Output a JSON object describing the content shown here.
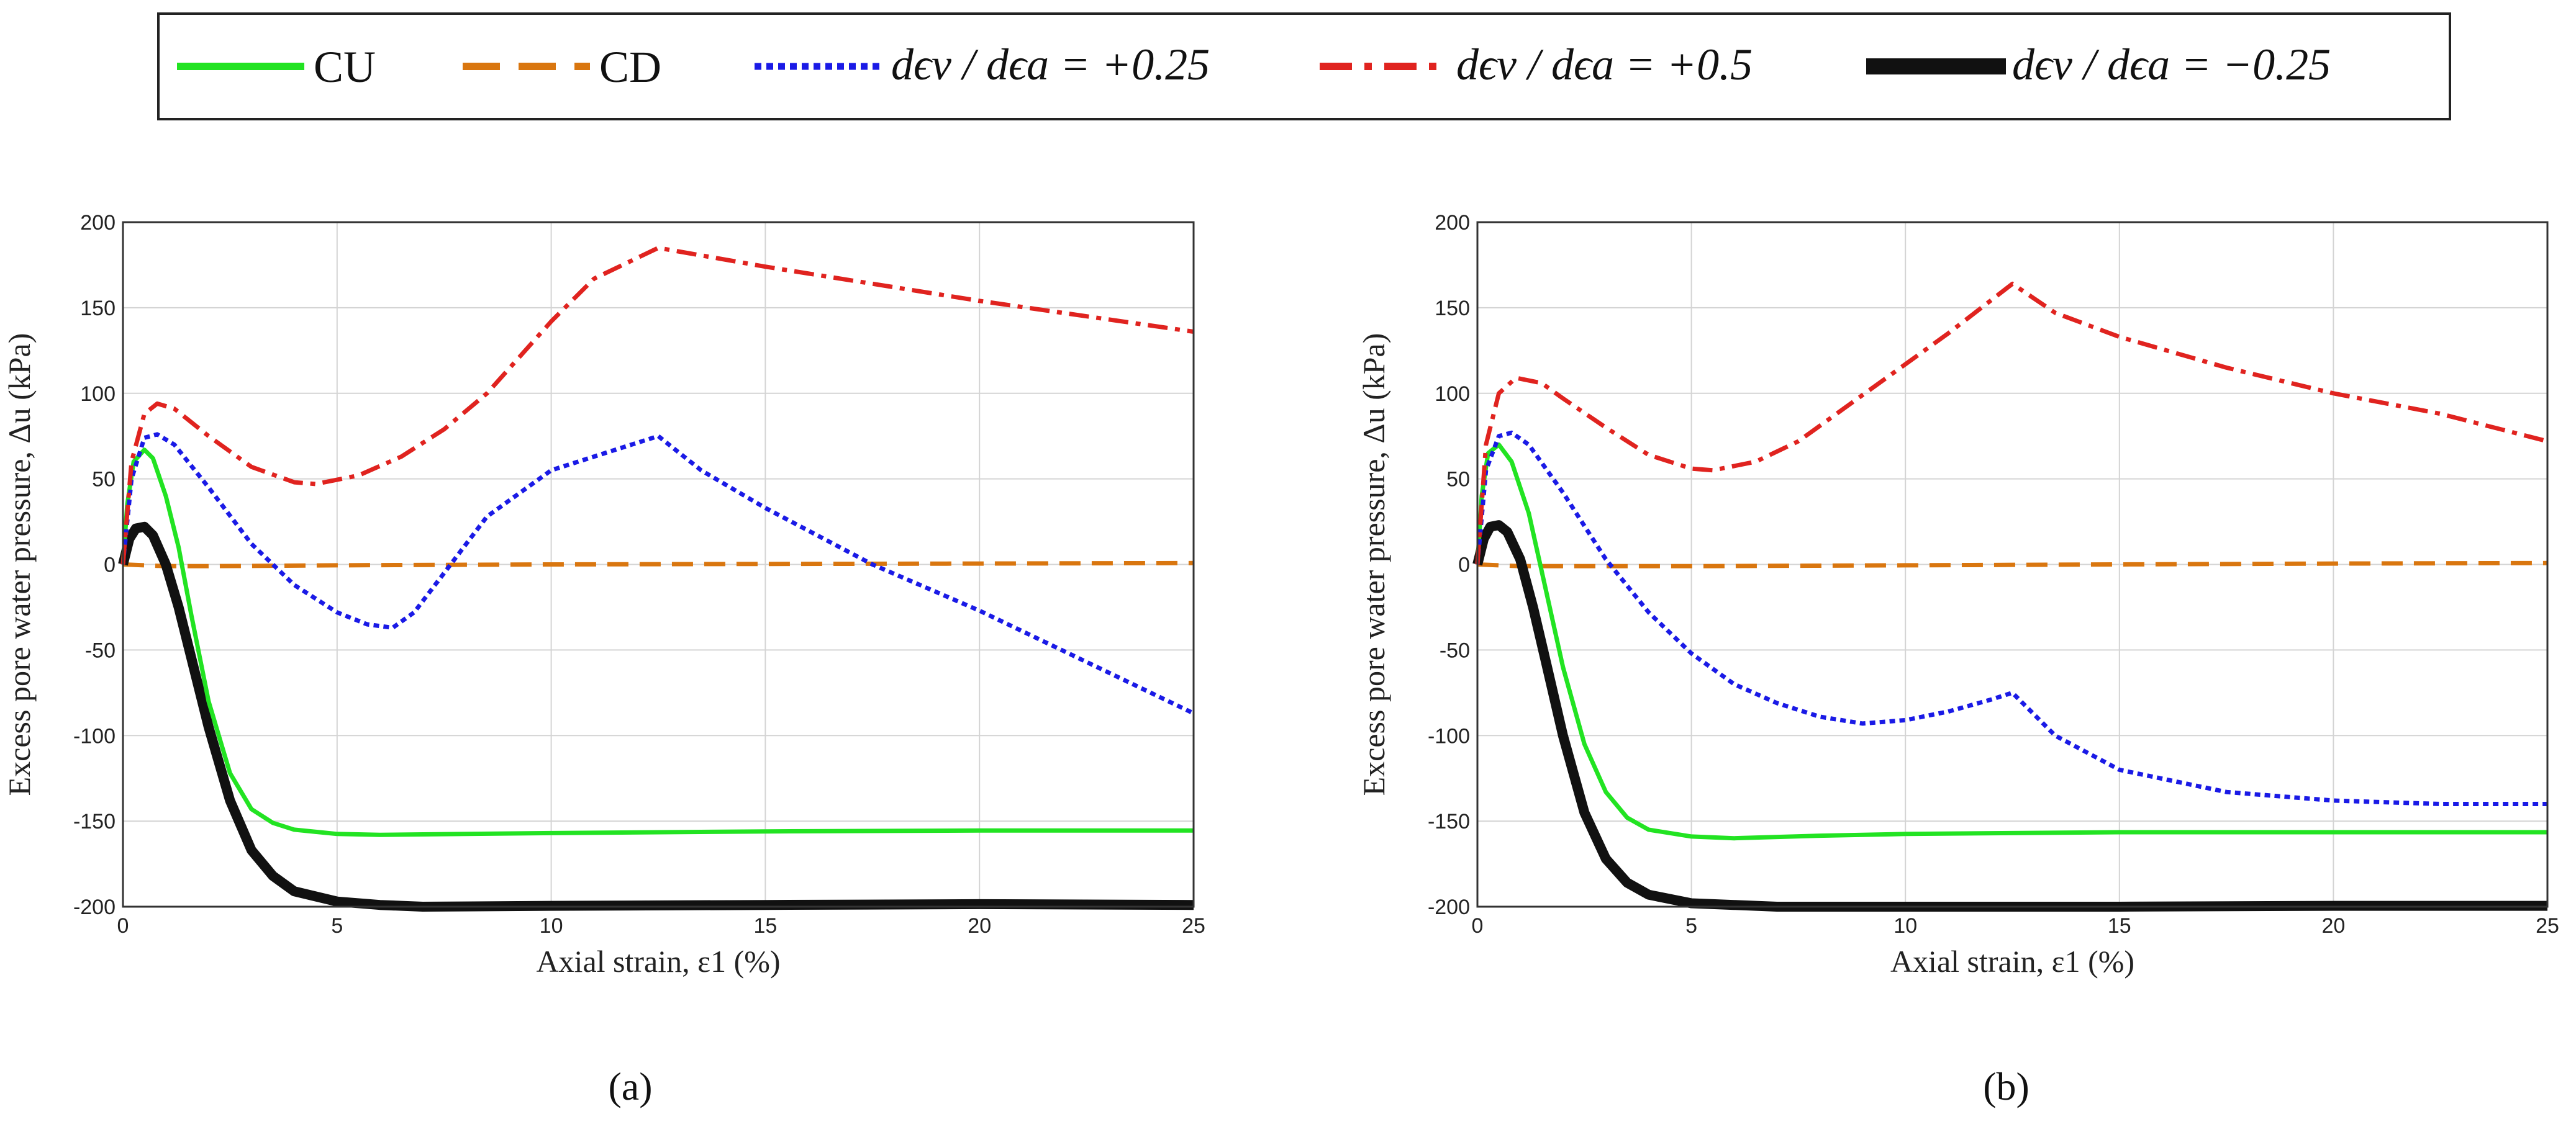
{
  "colors": {
    "CU": "#22e322",
    "CD": "#d9760f",
    "plus025": "#1a1ae6",
    "plus05": "#e0231f",
    "minus025": "#111111",
    "grid": "#d4d4d4",
    "axis": "#333333"
  },
  "legend": {
    "items": [
      {
        "key": "CU",
        "label": "CU"
      },
      {
        "key": "CD",
        "label": "CD"
      },
      {
        "key": "plus025",
        "label": "dϵv / dϵa = +0.25"
      },
      {
        "key": "plus05",
        "label": "dϵv / dϵa = +0.5"
      },
      {
        "key": "minus025",
        "label": "dϵv / dϵa = −0.25"
      }
    ]
  },
  "chart_data": [
    {
      "type": "line",
      "panel": "(a)",
      "xlabel": "Axial strain, ε1 (%)",
      "ylabel": "Excess pore water pressure, Δu (kPa)",
      "xlim": [
        0,
        25
      ],
      "ylim": [
        -200,
        200
      ],
      "xticks": [
        "0",
        "5",
        "10",
        "15",
        "20",
        "25"
      ],
      "yticks": [
        "200",
        "150",
        "100",
        "50",
        "0",
        "-50",
        "-100",
        "-150",
        "-200"
      ],
      "grid": true,
      "series": [
        {
          "name": "CU",
          "x": [
            0,
            0.1,
            0.25,
            0.5,
            0.7,
            1.0,
            1.3,
            1.6,
            2.0,
            2.5,
            3.0,
            3.5,
            4.0,
            5.0,
            6.0,
            8.0,
            10.0,
            15.0,
            20.0,
            25.0
          ],
          "y": [
            0,
            35,
            60,
            67,
            62,
            40,
            10,
            -30,
            -80,
            -122,
            -143,
            -151,
            -155,
            -157.5,
            -158,
            -157.5,
            -157,
            -156,
            -155.5,
            -155.5
          ]
        },
        {
          "name": "CD",
          "x": [
            0,
            0.5,
            1,
            2,
            5,
            10,
            15,
            20,
            25
          ],
          "y": [
            0,
            -0.5,
            -1,
            -1,
            -0.5,
            0,
            0.3,
            0.5,
            0.8
          ]
        },
        {
          "name": "dϵv / dϵa = +0.25",
          "x": [
            0,
            0.2,
            0.5,
            0.8,
            1.2,
            2.0,
            3.0,
            4.0,
            5.0,
            5.7,
            6.3,
            6.8,
            7.5,
            8.5,
            10.0,
            11.5,
            12.5,
            13.5,
            15.0,
            17.5,
            20.0,
            22.5,
            25.0
          ],
          "y": [
            0,
            50,
            74,
            76,
            70,
            45,
            12,
            -12,
            -28,
            -35,
            -37,
            -28,
            -5,
            28,
            55,
            67,
            75,
            55,
            33,
            0,
            -27,
            -57,
            -87
          ]
        },
        {
          "name": "dϵv / dϵa = +0.5",
          "x": [
            0,
            0.2,
            0.5,
            0.8,
            1.2,
            2.0,
            3.0,
            4.0,
            4.5,
            5.5,
            6.5,
            7.5,
            8.5,
            10.0,
            11.0,
            12.5,
            15.0,
            20.0,
            25.0
          ],
          "y": [
            0,
            60,
            88,
            94,
            91,
            75,
            57,
            48,
            47,
            52,
            63,
            79,
            100,
            142,
            167,
            185,
            174,
            154,
            136
          ]
        },
        {
          "name": "dϵv / dϵa = −0.25",
          "x": [
            0,
            0.15,
            0.3,
            0.5,
            0.7,
            1.0,
            1.3,
            1.6,
            2.0,
            2.5,
            3.0,
            3.5,
            4.0,
            5.0,
            6.0,
            7.0,
            10.0,
            15.0,
            20.0,
            25.0
          ],
          "y": [
            0,
            15,
            21,
            22,
            17,
            0,
            -25,
            -55,
            -95,
            -138,
            -167,
            -182,
            -191,
            -197,
            -199,
            -200,
            -199.5,
            -199,
            -198.5,
            -199
          ]
        }
      ]
    },
    {
      "type": "line",
      "panel": "(b)",
      "xlabel": "Axial strain, ε1 (%)",
      "ylabel": "Excess pore water pressure, Δu (kPa)",
      "xlim": [
        0,
        25
      ],
      "ylim": [
        -200,
        200
      ],
      "xticks": [
        "0",
        "5",
        "10",
        "15",
        "20",
        "25"
      ],
      "yticks": [
        "200",
        "150",
        "100",
        "50",
        "0",
        "-50",
        "-100",
        "-150",
        "-200"
      ],
      "grid": true,
      "series": [
        {
          "name": "CU",
          "x": [
            0,
            0.1,
            0.25,
            0.5,
            0.8,
            1.2,
            1.6,
            2.0,
            2.5,
            3.0,
            3.5,
            4.0,
            5.0,
            6.0,
            8.0,
            10.0,
            15.0,
            20.0,
            25.0
          ],
          "y": [
            0,
            40,
            65,
            70,
            60,
            30,
            -15,
            -60,
            -105,
            -133,
            -148,
            -155,
            -159,
            -160,
            -158.5,
            -157.5,
            -156.5,
            -156.5,
            -156.5
          ]
        },
        {
          "name": "CD",
          "x": [
            0,
            0.5,
            1,
            2,
            5,
            10,
            15,
            20,
            25
          ],
          "y": [
            0,
            -0.5,
            -1,
            -1,
            -1,
            -0.5,
            0,
            0.5,
            0.8
          ]
        },
        {
          "name": "dϵv / dϵa = +0.25",
          "x": [
            0,
            0.2,
            0.5,
            0.8,
            1.2,
            2.0,
            3.0,
            4.0,
            5.0,
            6.0,
            7.0,
            8.0,
            9.0,
            10.0,
            11.0,
            12.0,
            12.5,
            13.5,
            15.0,
            17.5,
            20.0,
            22.5,
            25.0
          ],
          "y": [
            0,
            55,
            75,
            77,
            70,
            42,
            3,
            -28,
            -52,
            -70,
            -81,
            -89,
            -93,
            -91,
            -86,
            -79,
            -75,
            -100,
            -120,
            -133,
            -138,
            -140,
            -140
          ]
        },
        {
          "name": "dϵv / dϵa = +0.5",
          "x": [
            0,
            0.2,
            0.5,
            0.9,
            1.5,
            2.0,
            3.0,
            4.0,
            5.0,
            5.5,
            6.5,
            7.5,
            8.5,
            10.0,
            11.0,
            12.5,
            13.5,
            15.0,
            17.5,
            20.0,
            22.5,
            25.0
          ],
          "y": [
            0,
            70,
            100,
            109,
            106,
            97,
            80,
            64,
            56,
            55,
            60,
            72,
            90,
            117,
            135,
            164,
            147,
            133,
            115,
            100,
            88,
            72
          ]
        },
        {
          "name": "dϵv / dϵa = −0.25",
          "x": [
            0,
            0.15,
            0.3,
            0.5,
            0.7,
            1.0,
            1.3,
            1.6,
            2.0,
            2.5,
            3.0,
            3.5,
            4.0,
            5.0,
            6.0,
            7.0,
            10.0,
            15.0,
            20.0,
            25.0
          ],
          "y": [
            0,
            15,
            22,
            23,
            19,
            3,
            -25,
            -57,
            -100,
            -145,
            -172,
            -186,
            -193,
            -198,
            -199,
            -200,
            -200,
            -200,
            -199.5,
            -199.5
          ]
        }
      ]
    }
  ]
}
